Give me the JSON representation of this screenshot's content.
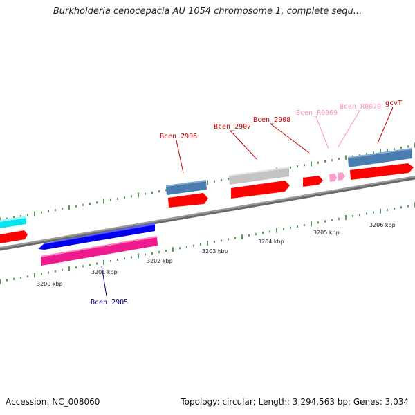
{
  "title": "Burkholderia cenocepacia AU 1054 chromosome 1, complete sequ...",
  "footer": {
    "accession": "Accession: NC_008060",
    "summary": "Topology: circular; Length: 3,294,563 bp; Genes: 3,034"
  },
  "scale_labels": [
    "3200 kbp",
    "3201 kbp",
    "3202 kbp",
    "3203 kbp",
    "3204 kbp",
    "3205 kbp",
    "3206 kbp"
  ],
  "gene_labels": {
    "bcen_2905": "Bcen_2905",
    "bcen_2906": "Bcen_2906",
    "bcen_2907": "Bcen_2907",
    "bcen_2908": "Bcen_2908",
    "bcen_r0069": "Bcen_R0069",
    "bcen_r0070": "Bcen_R0070",
    "gcvt": "gcvT"
  },
  "colors": {
    "backbone": "#8c8c8c",
    "tick": "#1f7a1f",
    "cds": "#ff0000",
    "gene_blue": "#4a7eb0",
    "gene_grey": "#bdbdbd",
    "cyan": "#00e5ee",
    "reverse_blue": "#0000ee",
    "reverse_magenta": "#ee1b8e",
    "rna": "#ff9cc8",
    "label_red": "#cc0000",
    "label_pink": "#ff8fbf",
    "label_navy": "#000080"
  }
}
